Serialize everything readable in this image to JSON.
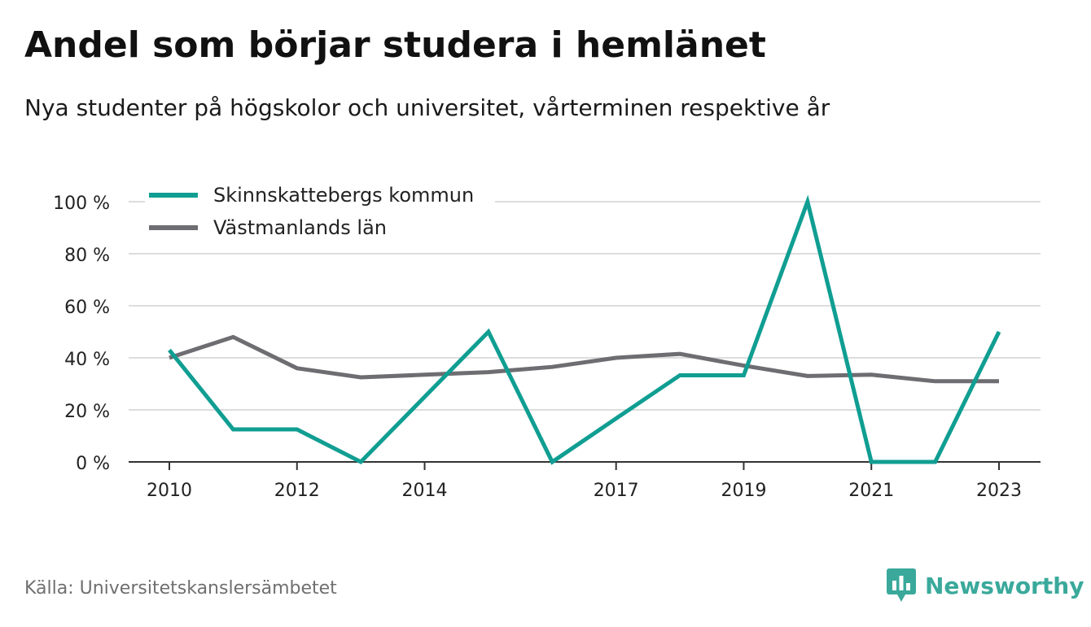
{
  "title": "Andel som börjar studera i hemlänet",
  "subtitle": "Nya studenter på högskolor och universitet, vårterminen respektive år",
  "source": "Källa: Universitetskanslersämbetet",
  "brand": "Newsworthy",
  "colors": {
    "series_1": "#109e92",
    "series_2": "#6d6d72",
    "grid": "#dddddd",
    "axis": "#333333",
    "brand": "#3aa99b"
  },
  "chart_data": {
    "type": "line",
    "x": [
      2010,
      2011,
      2012,
      2013,
      2014,
      2015,
      2016,
      2017,
      2018,
      2019,
      2020,
      2021,
      2022,
      2023
    ],
    "x_ticks": [
      "2010",
      "2012",
      "2014",
      "2017",
      "2019",
      "2021",
      "2023"
    ],
    "y_ticks": [
      "0 %",
      "20 %",
      "40 %",
      "60 %",
      "80 %",
      "100 %"
    ],
    "ylim": [
      0,
      100
    ],
    "grid": true,
    "legend_position": "top-left",
    "series": [
      {
        "name": "Skinnskattebergs kommun",
        "values": [
          43,
          12.5,
          12.5,
          0,
          25,
          50,
          0,
          16.7,
          33.3,
          33.3,
          100,
          0,
          0,
          50
        ]
      },
      {
        "name": "Västmanlands län",
        "values": [
          40,
          48,
          36,
          32.5,
          33.5,
          34.5,
          36.5,
          40,
          41.5,
          37,
          33,
          33.5,
          31,
          31
        ]
      }
    ]
  }
}
